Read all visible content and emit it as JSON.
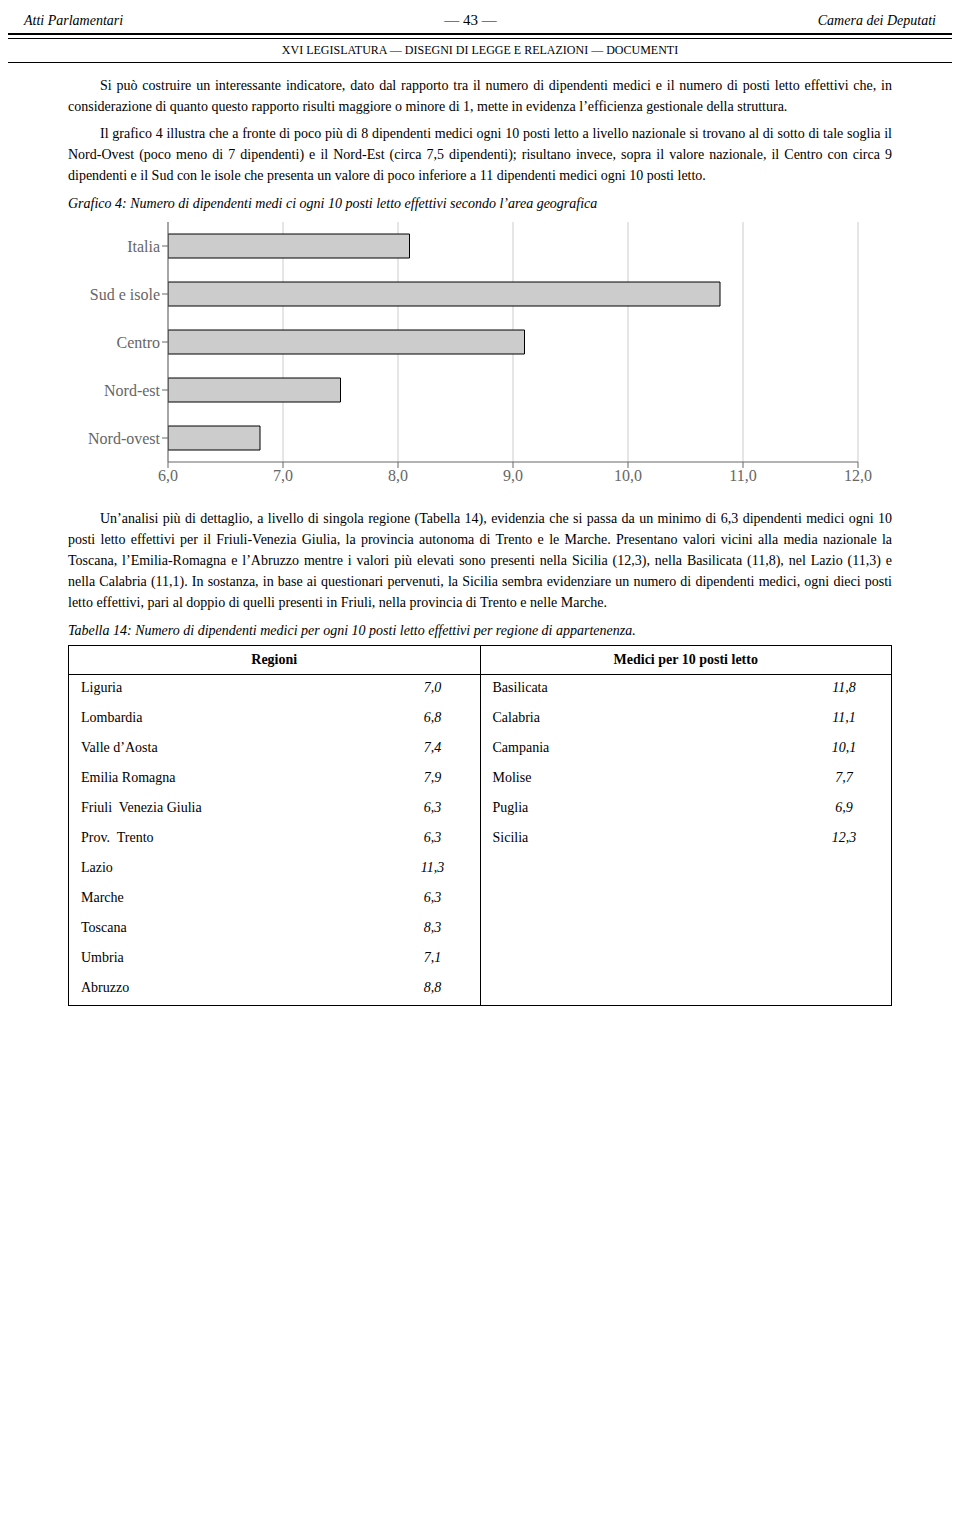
{
  "chart_data": {
    "type": "bar",
    "orientation": "horizontal",
    "title": "Grafico 4: Numero di dipendenti medi ci ogni 10 posti letto effettivi secondo l’area geografica",
    "categories": [
      "Nord-ovest",
      "Nord-est",
      "Centro",
      "Sud e isole",
      "Italia"
    ],
    "values": [
      6.8,
      7.5,
      9.1,
      10.8,
      8.1
    ],
    "color": "#cccccc",
    "xlim": [
      6.0,
      12.0
    ],
    "xticks": [
      {
        "value": 6.0,
        "label": "6,0"
      },
      {
        "value": 7.0,
        "label": "7,0"
      },
      {
        "value": 8.0,
        "label": "8,0"
      },
      {
        "value": 9.0,
        "label": "9,0"
      },
      {
        "value": 10.0,
        "label": "10,0"
      },
      {
        "value": 11.0,
        "label": "11,0"
      },
      {
        "value": 12.0,
        "label": "12,0"
      }
    ],
    "grid": true,
    "annotations": [
      "Atti Parlamentari",
      "— 43 —",
      "Camera dei Deputati",
      "XVI LEGISLATURA  —  DISEGNI DI LEGGE E RELAZIONI  —  DOCUMENTI",
      "Si può costruire un interessante indicatore, dato dal rapporto tra il numero di dipendenti medici e il numero di posti letto effettivi che, in considerazione di quanto questo rapporto risulti maggiore o minore di 1, mette in evidenza l’efficienza gestionale della struttura.",
      "Il grafico 4 illustra che a fronte di poco più di 8 dipendenti medici ogni 10 posti letto a livello nazionale si trovano al di sotto di tale soglia il Nord-Ovest (poco meno di 7 dipendenti) e il Nord-Est (circa 7,5 dipendenti); risultano invece, sopra il valore nazionale, il Centro con circa 9 dipendenti e il Sud con le isole che presenta un valore di poco inferiore a 11 dipendenti medici ogni 10 posti letto.",
      "Un’analisi più di dettaglio, a livello di singola regione (Tabella 14), evidenzia che si passa da un minimo di 6,3 dipendenti medici ogni 10 posti letto effettivi per il Friuli-Venezia Giulia, la provincia autonoma di Trento e le Marche. Presentano valori vicini alla media nazionale la Toscana, l’Emilia-Romagna e l’Abruzzo mentre i valori più elevati sono presenti nella Sicilia (12,3), nella Basilicata (11,8), nel Lazio (11,3) e nella Calabria (11,1). In sostanza, in base ai questionari pervenuti, la Sicilia sembra evidenziare un numero di dipendenti medici, ogni dieci posti letto effettivi, pari al doppio di quelli presenti in Friuli, nella provincia di Trento e nelle Marche.",
      "Tabella 14: Numero di dipendenti medici per ogni 10 posti letto effettivi per regione di appartenenza.",
      "Regioni",
      "Medici per 10 posti letto",
      "Liguria",
      "7,0",
      "Lombardia",
      "6,8",
      "Valle d’Aosta",
      "7,4",
      "Emilia Romagna",
      "7,9",
      "Friuli  Venezia Giulia",
      "6,3",
      "Prov.  Trento",
      "6,3",
      "Lazio",
      "11,3",
      "Marche",
      "6,3",
      "Toscana",
      "8,3",
      "Umbria",
      "7,1",
      "Abruzzo",
      "8,8",
      "Basilicata",
      "11,8",
      "Calabria",
      "11,1",
      "Campania",
      "10,1",
      "Molise",
      "7,7",
      "Puglia",
      "6,9",
      "Sicilia",
      "12,3"
    ]
  }
}
